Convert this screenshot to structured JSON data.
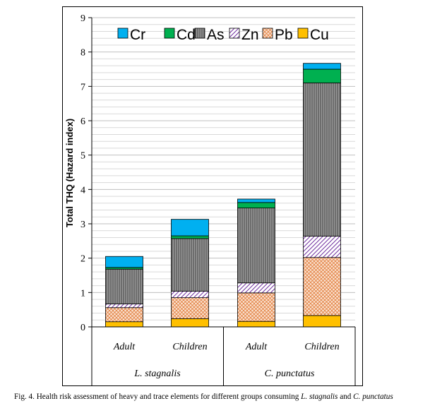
{
  "chart_data": {
    "type": "bar",
    "stacked": true,
    "title": "",
    "ylabel": "Total THQ (Hazard index)",
    "xlabel": "",
    "ylim": [
      0,
      9
    ],
    "yticks": [
      "0",
      "1",
      "2",
      "3",
      "4",
      "5",
      "6",
      "7",
      "8",
      "9"
    ],
    "grid": true,
    "legend_position": "top",
    "categories": [
      "Adult",
      "Children",
      "Adult",
      "Children"
    ],
    "groups": [
      {
        "label": "L. stagnalis",
        "categories": [
          0,
          1
        ]
      },
      {
        "label": "C. punctatus",
        "categories": [
          2,
          3
        ]
      }
    ],
    "legend_order": [
      "Cr",
      "Cd",
      "As",
      "Zn",
      "Pb",
      "Cu"
    ],
    "series": [
      {
        "name": "Cu",
        "values": [
          0.15,
          0.24,
          0.16,
          0.33
        ],
        "color": "#FFC000",
        "pattern": "solid"
      },
      {
        "name": "Pb",
        "values": [
          0.41,
          0.61,
          0.83,
          1.69
        ],
        "color": "#F4B183",
        "pattern": "crosshatch"
      },
      {
        "name": "Zn",
        "values": [
          0.11,
          0.19,
          0.29,
          0.62
        ],
        "color": "#7030A0",
        "pattern": "diagonal"
      },
      {
        "name": "As",
        "values": [
          1.01,
          1.53,
          2.18,
          4.46
        ],
        "color": "#808080",
        "pattern": "vertical"
      },
      {
        "name": "Cd",
        "values": [
          0.05,
          0.08,
          0.16,
          0.4
        ],
        "color": "#00B050",
        "pattern": "solid"
      },
      {
        "name": "Cr",
        "values": [
          0.32,
          0.48,
          0.1,
          0.17
        ],
        "color": "#00B0F0",
        "pattern": "solid"
      }
    ]
  },
  "caption": {
    "prefix": "Fig. 4. Health risk assessment of heavy and trace elements for different groups consuming ",
    "species1": "L. stagnalis",
    "middle": " and ",
    "species2": "C. punctatus"
  }
}
